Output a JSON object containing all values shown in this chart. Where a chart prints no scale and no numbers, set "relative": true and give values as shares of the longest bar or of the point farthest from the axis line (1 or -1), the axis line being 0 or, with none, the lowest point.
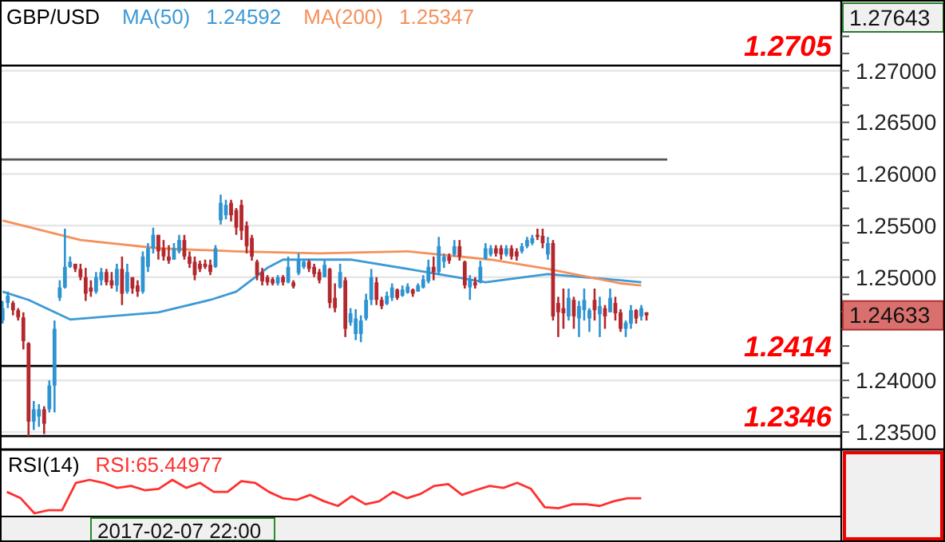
{
  "chart_data": [
    {
      "type": "candlestick",
      "title": "GBP/USD",
      "categories": [
        null,
        null,
        null,
        null,
        null,
        null,
        null,
        null,
        null,
        null,
        null,
        null,
        null,
        null,
        null,
        null,
        null,
        null,
        null,
        null,
        null,
        null,
        null,
        null,
        null,
        null,
        null,
        null,
        null,
        null,
        null,
        null,
        null,
        null,
        null,
        null,
        null,
        null,
        null,
        null,
        null,
        null,
        null,
        null,
        null,
        null,
        null,
        null,
        null,
        null,
        null,
        null,
        null,
        null,
        null,
        null,
        null,
        null,
        null,
        null,
        null,
        null,
        null,
        null,
        null,
        null,
        null,
        null,
        null,
        null,
        null,
        null,
        null,
        null,
        null,
        null,
        null,
        null,
        null,
        null,
        null,
        null,
        null,
        null,
        null,
        null,
        null,
        null,
        null,
        null,
        null,
        null,
        null,
        null,
        null,
        null,
        null,
        null,
        null,
        null,
        null,
        null,
        null,
        null,
        null,
        null,
        null,
        null,
        null,
        null,
        null,
        null,
        null,
        null,
        null,
        null,
        null,
        null,
        null,
        null,
        null,
        null,
        null,
        null,
        null,
        null,
        null,
        null,
        null,
        null,
        null,
        null,
        null,
        null,
        null,
        null,
        null,
        null,
        null,
        null,
        null,
        null,
        null,
        null,
        null,
        null,
        null,
        null,
        null,
        null,
        null,
        null,
        null,
        null,
        null,
        null,
        null,
        null,
        null,
        null,
        null,
        null
      ],
      "ohlc": [
        [
          1.2458,
          1.2477,
          1.2455,
          1.247
        ],
        [
          1.2475,
          1.2486,
          1.247,
          1.2482
        ],
        [
          1.2475,
          1.2477,
          1.2463,
          1.2468
        ],
        [
          1.2468,
          1.247,
          1.2458,
          1.2461
        ],
        [
          1.2461,
          1.2466,
          1.243,
          1.2438
        ],
        [
          1.2436,
          1.2437,
          1.2346,
          1.236
        ],
        [
          1.236,
          1.238,
          1.2352,
          1.2372
        ],
        [
          1.2365,
          1.2377,
          1.2355,
          1.2372
        ],
        [
          1.2372,
          1.2375,
          1.2348,
          1.2358
        ],
        [
          1.2372,
          1.24,
          1.2369,
          1.2395
        ],
        [
          1.2395,
          1.2458,
          1.2369,
          1.245
        ],
        [
          1.248,
          1.2497,
          1.2477,
          1.249
        ],
        [
          1.249,
          1.2547,
          1.2489,
          1.251
        ],
        [
          1.251,
          1.252,
          1.2509,
          1.2515
        ],
        [
          1.2513,
          1.2513,
          1.2505,
          1.2508
        ],
        [
          1.2508,
          1.2513,
          1.2497,
          1.25
        ],
        [
          1.25,
          1.2509,
          1.2477,
          1.2484
        ],
        [
          1.249,
          1.2497,
          1.2481,
          1.2486
        ],
        [
          1.2486,
          1.2505,
          1.2484,
          1.25
        ],
        [
          1.2497,
          1.2509,
          1.2492,
          1.2505
        ],
        [
          1.2505,
          1.2508,
          1.2492,
          1.2495
        ],
        [
          1.2497,
          1.2505,
          1.2489,
          1.2492
        ],
        [
          1.2492,
          1.2513,
          1.2486,
          1.2508
        ],
        [
          1.2508,
          1.252,
          1.2473,
          1.2484
        ],
        [
          1.2486,
          1.2513,
          1.2484,
          1.2505
        ],
        [
          1.25,
          1.25,
          1.2484,
          1.2489
        ],
        [
          1.2492,
          1.2497,
          1.2481,
          1.2486
        ],
        [
          1.2486,
          1.2525,
          1.2484,
          1.252
        ],
        [
          1.251,
          1.2533,
          1.2505,
          1.2528
        ],
        [
          1.2528,
          1.2548,
          1.2523,
          1.2541
        ],
        [
          1.2541,
          1.2541,
          1.2517,
          1.2525
        ],
        [
          1.2528,
          1.2536,
          1.2516,
          1.252
        ],
        [
          1.252,
          1.2531,
          1.2513,
          1.2516
        ],
        [
          1.2517,
          1.2533,
          1.2517,
          1.2528
        ],
        [
          1.2525,
          1.2541,
          1.2523,
          1.2536
        ],
        [
          1.2536,
          1.2541,
          1.2517,
          1.252
        ],
        [
          1.252,
          1.2525,
          1.2509,
          1.2513
        ],
        [
          1.2515,
          1.252,
          1.2497,
          1.2502
        ],
        [
          1.2513,
          1.2516,
          1.2505,
          1.2508
        ],
        [
          1.2513,
          1.2517,
          1.2508,
          1.251
        ],
        [
          1.2512,
          1.2517,
          1.2502,
          1.2505
        ],
        [
          1.251,
          1.2531,
          1.2509,
          1.2528
        ],
        [
          1.2555,
          1.258,
          1.2551,
          1.2572
        ],
        [
          1.256,
          1.2575,
          1.2556,
          1.257
        ],
        [
          1.2572,
          1.2575,
          1.2554,
          1.256
        ],
        [
          1.2565,
          1.2567,
          1.2541,
          1.2548
        ],
        [
          1.257,
          1.2575,
          1.2536,
          1.2545
        ],
        [
          1.255,
          1.2554,
          1.2523,
          1.253
        ],
        [
          1.2538,
          1.2541,
          1.2516,
          1.252
        ],
        [
          1.2515,
          1.2517,
          1.2497,
          1.2502
        ],
        [
          1.2505,
          1.2509,
          1.2492,
          1.2496
        ],
        [
          1.25,
          1.2502,
          1.2492,
          1.2495
        ],
        [
          1.2498,
          1.25,
          1.2492,
          1.2494
        ],
        [
          1.2494,
          1.2502,
          1.2492,
          1.25
        ],
        [
          1.25,
          1.2502,
          1.2492,
          1.2495
        ],
        [
          1.2495,
          1.252,
          1.2494,
          1.251
        ],
        [
          1.2495,
          1.2497,
          1.2489,
          1.2491
        ],
        [
          1.2504,
          1.2523,
          1.2502,
          1.2517
        ],
        [
          1.251,
          1.2517,
          1.2508,
          1.2515
        ],
        [
          1.2515,
          1.2517,
          1.2505,
          1.2508
        ],
        [
          1.251,
          1.2513,
          1.25,
          1.2503
        ],
        [
          1.2505,
          1.2508,
          1.2494,
          1.2497
        ],
        [
          1.25,
          1.2516,
          1.25,
          1.2512
        ],
        [
          1.2508,
          1.2509,
          1.247,
          1.2475
        ],
        [
          1.248,
          1.2494,
          1.2466,
          1.247
        ],
        [
          1.249,
          1.2513,
          1.2489,
          1.2505
        ],
        [
          1.2497,
          1.25,
          1.2442,
          1.245
        ],
        [
          1.2456,
          1.247,
          1.2453,
          1.2465
        ],
        [
          1.2445,
          1.2469,
          1.2439,
          1.246
        ],
        [
          1.2445,
          1.2463,
          1.2437,
          1.2458
        ],
        [
          1.246,
          1.2484,
          1.2458,
          1.2478
        ],
        [
          1.2478,
          1.2508,
          1.2473,
          1.25
        ],
        [
          1.2495,
          1.25,
          1.2473,
          1.2478
        ],
        [
          1.2478,
          1.2481,
          1.2469,
          1.2472
        ],
        [
          1.2474,
          1.2486,
          1.2473,
          1.2482
        ],
        [
          1.248,
          1.2494,
          1.2477,
          1.249
        ],
        [
          1.2488,
          1.2489,
          1.2478,
          1.248
        ],
        [
          1.2482,
          1.2492,
          1.2481,
          1.2488
        ],
        [
          1.2485,
          1.2494,
          1.2484,
          1.2491
        ],
        [
          1.2488,
          1.2489,
          1.2481,
          1.2484
        ],
        [
          1.2486,
          1.2494,
          1.2486,
          1.2492
        ],
        [
          1.249,
          1.2502,
          1.2489,
          1.2498
        ],
        [
          1.2496,
          1.2517,
          1.2494,
          1.251
        ],
        [
          1.251,
          1.252,
          1.2497,
          1.2505
        ],
        [
          1.2505,
          1.2539,
          1.2502,
          1.253
        ],
        [
          1.2515,
          1.2523,
          1.2509,
          1.252
        ],
        [
          1.252,
          1.2523,
          1.2513,
          1.2516
        ],
        [
          1.2522,
          1.2536,
          1.252,
          1.253
        ],
        [
          1.253,
          1.2536,
          1.2516,
          1.252
        ],
        [
          1.2515,
          1.2516,
          1.2489,
          1.2492
        ],
        [
          1.249,
          1.2502,
          1.2478,
          1.2498
        ],
        [
          1.2495,
          1.25,
          1.2489,
          1.2492
        ],
        [
          1.2495,
          1.2516,
          1.2494,
          1.251
        ],
        [
          1.2518,
          1.2533,
          1.2517,
          1.2528
        ],
        [
          1.2522,
          1.2531,
          1.252,
          1.2528
        ],
        [
          1.2528,
          1.2531,
          1.252,
          1.2523
        ],
        [
          1.2528,
          1.2531,
          1.2517,
          1.2522
        ],
        [
          1.2522,
          1.2531,
          1.252,
          1.2528
        ],
        [
          1.2528,
          1.2531,
          1.2517,
          1.252
        ],
        [
          1.2525,
          1.2528,
          1.2516,
          1.252
        ],
        [
          1.2525,
          1.2533,
          1.2523,
          1.253
        ],
        [
          1.253,
          1.2539,
          1.2528,
          1.2536
        ],
        [
          1.2533,
          1.2541,
          1.2531,
          1.2538
        ],
        [
          1.2541,
          1.2547,
          1.2536,
          1.2539
        ],
        [
          1.254,
          1.2547,
          1.2528,
          1.2533
        ],
        [
          1.2522,
          1.2539,
          1.2517,
          1.2533
        ],
        [
          1.2533,
          1.2536,
          1.2458,
          1.2462
        ],
        [
          1.2475,
          1.2481,
          1.2442,
          1.2466
        ],
        [
          1.247,
          1.2489,
          1.245,
          1.2465
        ],
        [
          1.2462,
          1.2489,
          1.2458,
          1.248
        ],
        [
          1.2478,
          1.2481,
          1.245,
          1.2462
        ],
        [
          1.246,
          1.2477,
          1.2442,
          1.2472
        ],
        [
          1.2468,
          1.2489,
          1.2458,
          1.2478
        ],
        [
          1.246,
          1.247,
          1.2447,
          1.2468
        ],
        [
          1.2478,
          1.2489,
          1.2458,
          1.2468
        ],
        [
          1.2464,
          1.2481,
          1.2442,
          1.2472
        ],
        [
          1.247,
          1.2473,
          1.245,
          1.2462
        ],
        [
          1.2466,
          1.2489,
          1.2466,
          1.248
        ],
        [
          1.2475,
          1.2481,
          1.2458,
          1.2465
        ],
        [
          1.2466,
          1.2469,
          1.2447,
          1.245
        ],
        [
          1.245,
          1.2458,
          1.2442,
          1.2456
        ],
        [
          1.2455,
          1.2473,
          1.245,
          1.2468
        ],
        [
          1.2468,
          1.2469,
          1.2455,
          1.246
        ],
        [
          1.2462,
          1.2473,
          1.2458,
          1.247
        ],
        [
          1.2466,
          1.2466,
          1.2458,
          1.2463
        ],
        null,
        null,
        null,
        null,
        null,
        null,
        null,
        null,
        null,
        null,
        null,
        null,
        null,
        null,
        null,
        null,
        null,
        null,
        null,
        null,
        null,
        null,
        null,
        null,
        null,
        null,
        null,
        null,
        null,
        null,
        null,
        null,
        null,
        null,
        null,
        null,
        null
      ],
      "series": [
        {
          "name": "MA(50)",
          "type": "line",
          "color": "#3d9ad6",
          "values": [
            1.2486,
            null,
            null,
            null,
            null,
            1.2478,
            null,
            null,
            null,
            null,
            null,
            null,
            null,
            1.2459,
            null,
            null,
            null,
            null,
            null,
            null,
            null,
            null,
            null,
            null,
            null,
            null,
            null,
            null,
            null,
            null,
            1.2466,
            null,
            null,
            null,
            null,
            null,
            null,
            null,
            null,
            null,
            1.2478,
            null,
            null,
            null,
            null,
            1.2486,
            null,
            null,
            null,
            null,
            null,
            1.2509,
            null,
            null,
            1.2517,
            null,
            null,
            null,
            null,
            null,
            null,
            1.2517,
            null,
            null,
            null,
            null,
            null,
            1.2517,
            null,
            null,
            null,
            null,
            null,
            null,
            null,
            null,
            null,
            null,
            1.2508,
            null,
            null,
            null,
            null,
            null,
            null,
            1.2502,
            null,
            null,
            null,
            null,
            null,
            null,
            null,
            1.2495,
            null,
            null,
            null,
            null,
            null,
            null,
            null,
            null,
            null,
            null,
            null,
            1.2503,
            null,
            null,
            null,
            null,
            null,
            null,
            null,
            null,
            null,
            null,
            null,
            null,
            null,
            1.2497,
            null,
            null,
            null,
            1.2495,
            null,
            null,
            null,
            null,
            null,
            null,
            null,
            null,
            null,
            null,
            null,
            null,
            null,
            null,
            null,
            null,
            null,
            null,
            null,
            null,
            null,
            null,
            null,
            null,
            null,
            null,
            null,
            null,
            null,
            null,
            null,
            null,
            null,
            null,
            null,
            null,
            null,
            null
          ]
        },
        {
          "name": "MA(200)",
          "type": "line",
          "color": "#f5915a",
          "values": [
            1.2555,
            null,
            null,
            null,
            null,
            null,
            null,
            null,
            null,
            null,
            null,
            null,
            null,
            null,
            null,
            1.2536,
            null,
            null,
            null,
            null,
            null,
            null,
            null,
            null,
            null,
            null,
            null,
            null,
            null,
            null,
            1.2528,
            null,
            null,
            null,
            null,
            null,
            null,
            null,
            null,
            null,
            null,
            null,
            null,
            null,
            null,
            1.2525,
            null,
            null,
            null,
            null,
            null,
            null,
            null,
            null,
            null,
            null,
            null,
            null,
            null,
            null,
            null,
            1.2523,
            null,
            null,
            null,
            null,
            null,
            null,
            null,
            null,
            null,
            null,
            null,
            null,
            null,
            null,
            null,
            null,
            1.2525,
            null,
            null,
            null,
            null,
            null,
            null,
            null,
            null,
            null,
            null,
            null,
            null,
            null,
            null,
            null,
            1.2517,
            null,
            null,
            null,
            null,
            null,
            null,
            null,
            null,
            null,
            null,
            1.2508,
            null,
            null,
            null,
            null,
            null,
            null,
            null,
            null,
            null,
            null,
            null,
            null,
            null,
            1.2494,
            null,
            null,
            null,
            1.2492,
            null,
            null,
            null,
            null,
            null,
            null,
            null,
            null,
            null,
            null,
            null,
            null,
            null,
            null,
            null,
            null,
            null,
            null,
            null,
            null,
            null,
            null,
            null,
            null,
            null,
            null,
            null,
            null,
            null,
            null,
            null,
            null,
            null,
            null,
            null,
            null,
            null,
            null
          ]
        }
      ],
      "ylim": [
        1.2333,
        1.2767
      ],
      "yticks": [
        {
          "value": 1.235,
          "label": "1.23500"
        },
        {
          "value": 1.23667,
          "label": null
        },
        {
          "value": 1.23833,
          "label": null
        },
        {
          "value": 1.24,
          "label": "1.24000"
        },
        {
          "value": 1.24167,
          "label": null
        },
        {
          "value": 1.24333,
          "label": null
        },
        {
          "value": 1.245,
          "label": null
        },
        {
          "value": 1.24667,
          "label": null
        },
        {
          "value": 1.24833,
          "label": null
        },
        {
          "value": 1.25,
          "label": "1.25000"
        },
        {
          "value": 1.25167,
          "label": null
        },
        {
          "value": 1.25333,
          "label": null
        },
        {
          "value": 1.255,
          "label": "1.25500"
        },
        {
          "value": 1.25667,
          "label": null
        },
        {
          "value": 1.25833,
          "label": null
        },
        {
          "value": 1.26,
          "label": "1.26000"
        },
        {
          "value": 1.26167,
          "label": null
        },
        {
          "value": 1.26333,
          "label": null
        },
        {
          "value": 1.265,
          "label": "1.26500"
        },
        {
          "value": 1.26667,
          "label": null
        },
        {
          "value": 1.26833,
          "label": null
        },
        {
          "value": 1.27,
          "label": "1.27000"
        },
        {
          "value": 1.27167,
          "label": null
        },
        {
          "value": 1.27333,
          "label": null
        }
      ],
      "grid": "y",
      "ref_lines": [
        {
          "axis": "y",
          "value": 1.2705,
          "label": "1.2705",
          "color": "#000000"
        },
        {
          "axis": "y",
          "value": 1.2614,
          "label": null,
          "color": "#555555"
        },
        {
          "axis": "y",
          "value": 1.2414,
          "label": "1.2414",
          "color": "#000000"
        },
        {
          "axis": "y",
          "value": 1.2346,
          "label": "1.2346",
          "color": "#000000"
        }
      ],
      "annotations": [
        "1.24592",
        "1.25347",
        "1.27643",
        "1.24633"
      ]
    },
    {
      "type": "line",
      "title": "RSI(14)",
      "relative": true,
      "categories": [
        null,
        null,
        null,
        null,
        null,
        null,
        null,
        null,
        null,
        null,
        null,
        null,
        null,
        null,
        null,
        null,
        null,
        null,
        null,
        null,
        null,
        null,
        null,
        null,
        null,
        null,
        null,
        null,
        null,
        null,
        null,
        null,
        null,
        null,
        null,
        null,
        null,
        null,
        null,
        null,
        null,
        null,
        null,
        null,
        null,
        null,
        null,
        null,
        null,
        null,
        null,
        null,
        null,
        null,
        null,
        null,
        null,
        null,
        null,
        null,
        null
      ],
      "series": [
        {
          "color": "#ff3030",
          "values": [
            0.64,
            0.45,
            0,
            0.09,
            0.09,
            0.91,
            1,
            0.91,
            0.76,
            0.82,
            0.69,
            0.73,
            1,
            0.76,
            0.91,
            0.64,
            0.64,
            0.96,
            0.91,
            0.64,
            0.45,
            0.4,
            0.55,
            0.36,
            0.22,
            0.51,
            0.27,
            0.36,
            0.64,
            0.45,
            0.58,
            0.82,
            0.87,
            0.55,
            0.69,
            0.82,
            0.76,
            0.91,
            0.73,
            0.18,
            0.15,
            0.27,
            0.27,
            0.22,
            0.36,
            0.45,
            0.45,
            null,
            null,
            null,
            null,
            null,
            null,
            null,
            null,
            null,
            null,
            null,
            null,
            null,
            null
          ]
        }
      ],
      "annotations": [
        "RSI:65.44977",
        "2017-02-07 22:00"
      ]
    }
  ]
}
